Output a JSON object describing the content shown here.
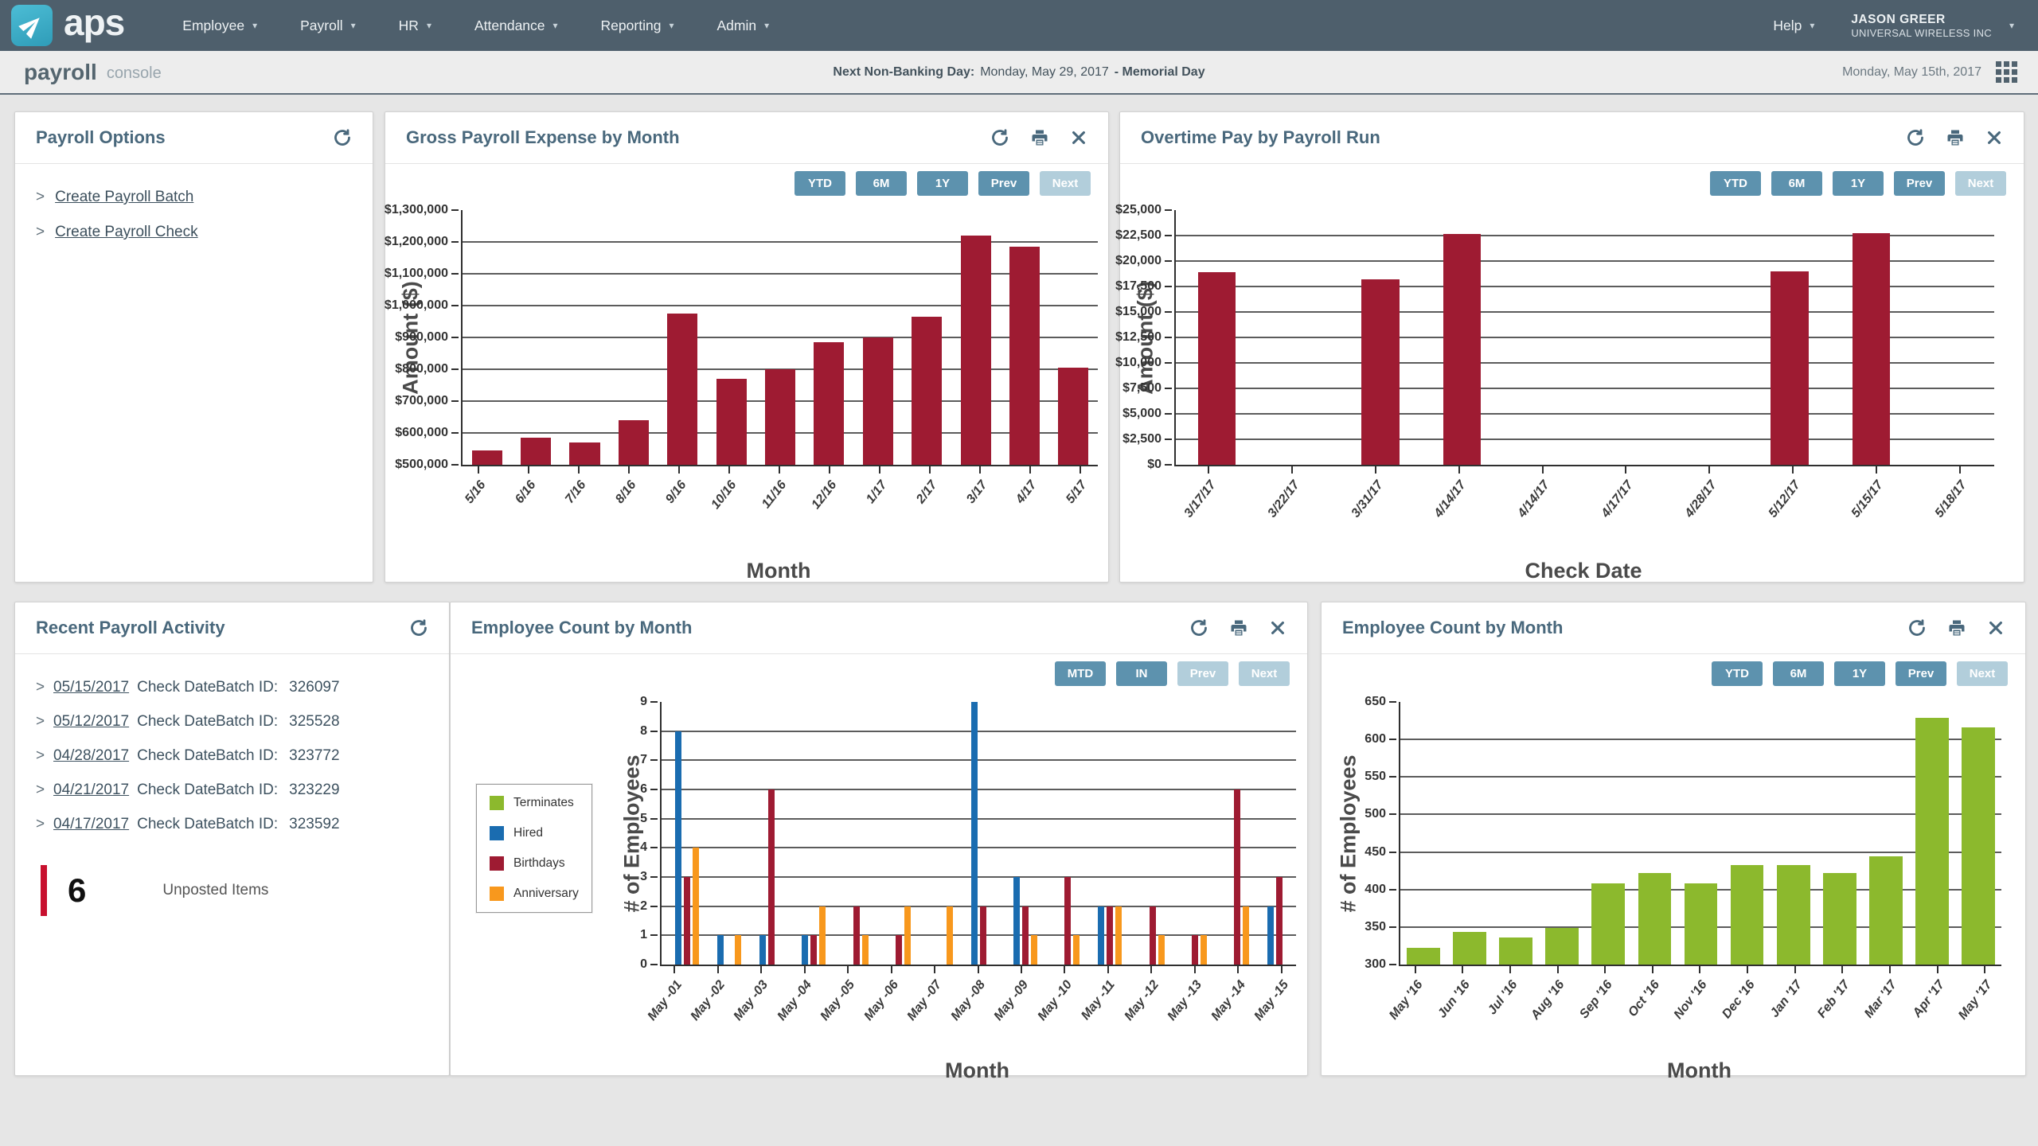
{
  "colors": {
    "nav_bg": "#4e5f6c",
    "brand_teal": "#3fb3cc",
    "panel_title": "#49687c",
    "link": "#3c4f5c",
    "maroon": "#9e1b32",
    "green": "#8cb92d",
    "blue": "#1a6cb0",
    "orange": "#f8981d",
    "button_active": "#5d92ae",
    "button_disabled": "#b2cedb",
    "unposted_red": "#c8102e"
  },
  "nav": {
    "brand": "aps",
    "items": [
      {
        "label": "Employee"
      },
      {
        "label": "Payroll"
      },
      {
        "label": "HR"
      },
      {
        "label": "Attendance"
      },
      {
        "label": "Reporting"
      },
      {
        "label": "Admin"
      }
    ],
    "help": "Help",
    "user_name": "JASON GREER",
    "user_company": "UNIVERSAL WIRELESS INC"
  },
  "subheader": {
    "app": "payroll",
    "app_sub": "console",
    "banner_label": "Next Non-Banking Day:",
    "banner_value": "Monday, May 29, 2017",
    "banner_suffix": "- Memorial Day",
    "date": "Monday, May 15th, 2017"
  },
  "bullet": ">",
  "panels": {
    "payroll_options": {
      "title": "Payroll Options",
      "links": [
        {
          "label": "Create Payroll Batch"
        },
        {
          "label": "Create Payroll Check"
        }
      ]
    },
    "gross": {
      "title": "Gross Payroll Expense by Month",
      "buttons": [
        {
          "label": "YTD",
          "enabled": true
        },
        {
          "label": "6M",
          "enabled": true
        },
        {
          "label": "1Y",
          "enabled": true
        },
        {
          "label": "Prev",
          "enabled": true
        },
        {
          "label": "Next",
          "enabled": false
        }
      ]
    },
    "overtime": {
      "title": "Overtime Pay by Payroll Run",
      "buttons": [
        {
          "label": "YTD",
          "enabled": true
        },
        {
          "label": "6M",
          "enabled": true
        },
        {
          "label": "1Y",
          "enabled": true
        },
        {
          "label": "Prev",
          "enabled": true
        },
        {
          "label": "Next",
          "enabled": false
        }
      ]
    },
    "activity": {
      "title": "Recent Payroll Activity",
      "rows": [
        {
          "date": "05/15/2017",
          "type": "Check Date",
          "batch_label": "Batch ID:",
          "batch_id": "326097"
        },
        {
          "date": "05/12/2017",
          "type": "Check Date",
          "batch_label": "Batch ID:",
          "batch_id": "325528"
        },
        {
          "date": "04/28/2017",
          "type": "Check Date",
          "batch_label": "Batch ID:",
          "batch_id": "323772"
        },
        {
          "date": "04/21/2017",
          "type": "Check Date",
          "batch_label": "Batch ID:",
          "batch_id": "323229"
        },
        {
          "date": "04/17/2017",
          "type": "Check Date",
          "batch_label": "Batch ID:",
          "batch_id": "323592"
        }
      ],
      "unposted_count": "6",
      "unposted_label": "Unposted Items"
    },
    "emp_daily": {
      "title": "Employee Count by Month",
      "buttons": [
        {
          "label": "MTD",
          "enabled": true
        },
        {
          "label": "IN",
          "enabled": true
        },
        {
          "label": "Prev",
          "enabled": false
        },
        {
          "label": "Next",
          "enabled": false
        }
      ]
    },
    "emp_monthly": {
      "title": "Employee Count by Month",
      "buttons": [
        {
          "label": "YTD",
          "enabled": true
        },
        {
          "label": "6M",
          "enabled": true
        },
        {
          "label": "1Y",
          "enabled": true
        },
        {
          "label": "Prev",
          "enabled": true
        },
        {
          "label": "Next",
          "enabled": false
        }
      ]
    }
  },
  "chart_data": [
    {
      "id": "gross",
      "type": "bar",
      "title": "Gross Payroll Expense by Month",
      "categories": [
        "5/16",
        "6/16",
        "7/16",
        "8/16",
        "9/16",
        "10/16",
        "11/16",
        "12/16",
        "1/17",
        "2/17",
        "3/17",
        "4/17",
        "5/17"
      ],
      "values": [
        545000,
        585000,
        570000,
        640000,
        975000,
        770000,
        800000,
        885000,
        900000,
        965000,
        1220000,
        1185000,
        805000
      ],
      "xlabel": "Month",
      "ylabel": "Amount ($)",
      "ylim": [
        500000,
        1300000
      ],
      "ystep": 100000,
      "yformat": "usd",
      "bar_color": "#9e1b32",
      "grid": true,
      "legend_position": "none"
    },
    {
      "id": "overtime",
      "type": "bar",
      "title": "Overtime Pay by Payroll Run",
      "categories": [
        "3/17/17",
        "3/22/17",
        "3/31/17",
        "4/14/17",
        "4/14/17",
        "4/17/17",
        "4/28/17",
        "5/12/17",
        "5/15/17",
        "5/18/17"
      ],
      "values": [
        18900,
        0,
        18200,
        22650,
        0,
        0,
        0,
        18950,
        22750,
        0
      ],
      "xlabel": "Check Date",
      "ylabel": "Amount ($)",
      "ylim": [
        0,
        25000
      ],
      "ystep": 2500,
      "yformat": "usd",
      "bar_color": "#9e1b32",
      "grid": true,
      "legend_position": "none"
    },
    {
      "id": "emp_daily",
      "type": "grouped-bar",
      "title": "Employee Count by Month",
      "categories": [
        "May -01",
        "May -02",
        "May -03",
        "May -04",
        "May -05",
        "May -06",
        "May -07",
        "May -08",
        "May -09",
        "May -10",
        "May -11",
        "May -12",
        "May -13",
        "May -14",
        "May -15"
      ],
      "series": [
        {
          "name": "Terminates",
          "color": "#8cb92d",
          "values": [
            0,
            0,
            0,
            0,
            0,
            0,
            0,
            0,
            0,
            0,
            0,
            0,
            0,
            0,
            0
          ]
        },
        {
          "name": "Hired",
          "color": "#1a6cb0",
          "values": [
            8,
            1,
            1,
            1,
            0,
            0,
            0,
            9,
            3,
            0,
            2,
            0,
            0,
            0,
            2
          ]
        },
        {
          "name": "Birthdays",
          "color": "#9e1b32",
          "values": [
            3,
            0,
            6,
            1,
            2,
            1,
            0,
            2,
            2,
            3,
            2,
            2,
            1,
            6,
            3
          ]
        },
        {
          "name": "Anniversary",
          "color": "#f8981d",
          "values": [
            4,
            1,
            0,
            2,
            1,
            2,
            2,
            0,
            1,
            1,
            2,
            1,
            1,
            2,
            0
          ]
        }
      ],
      "xlabel": "Month",
      "ylabel": "# of Employees",
      "ylim": [
        0,
        9
      ],
      "ystep": 1,
      "yformat": "plain",
      "grid": true,
      "legend_position": "left"
    },
    {
      "id": "emp_monthly",
      "type": "bar",
      "title": "Employee Count by Month",
      "categories": [
        "May '16",
        "Jun '16",
        "Jul '16",
        "Aug '16",
        "Sep '16",
        "Oct '16",
        "Nov '16",
        "Dec '16",
        "Jan '17",
        "Feb '17",
        "Mar '17",
        "Apr '17",
        "May '17"
      ],
      "values": [
        322,
        343,
        336,
        349,
        408,
        422,
        408,
        433,
        433,
        422,
        444,
        629,
        616
      ],
      "xlabel": "Month",
      "ylabel": "# of Employees",
      "ylim": [
        300,
        650
      ],
      "ystep": 50,
      "yformat": "plain",
      "bar_color": "#8cb92d",
      "grid": true,
      "legend_position": "none"
    }
  ]
}
